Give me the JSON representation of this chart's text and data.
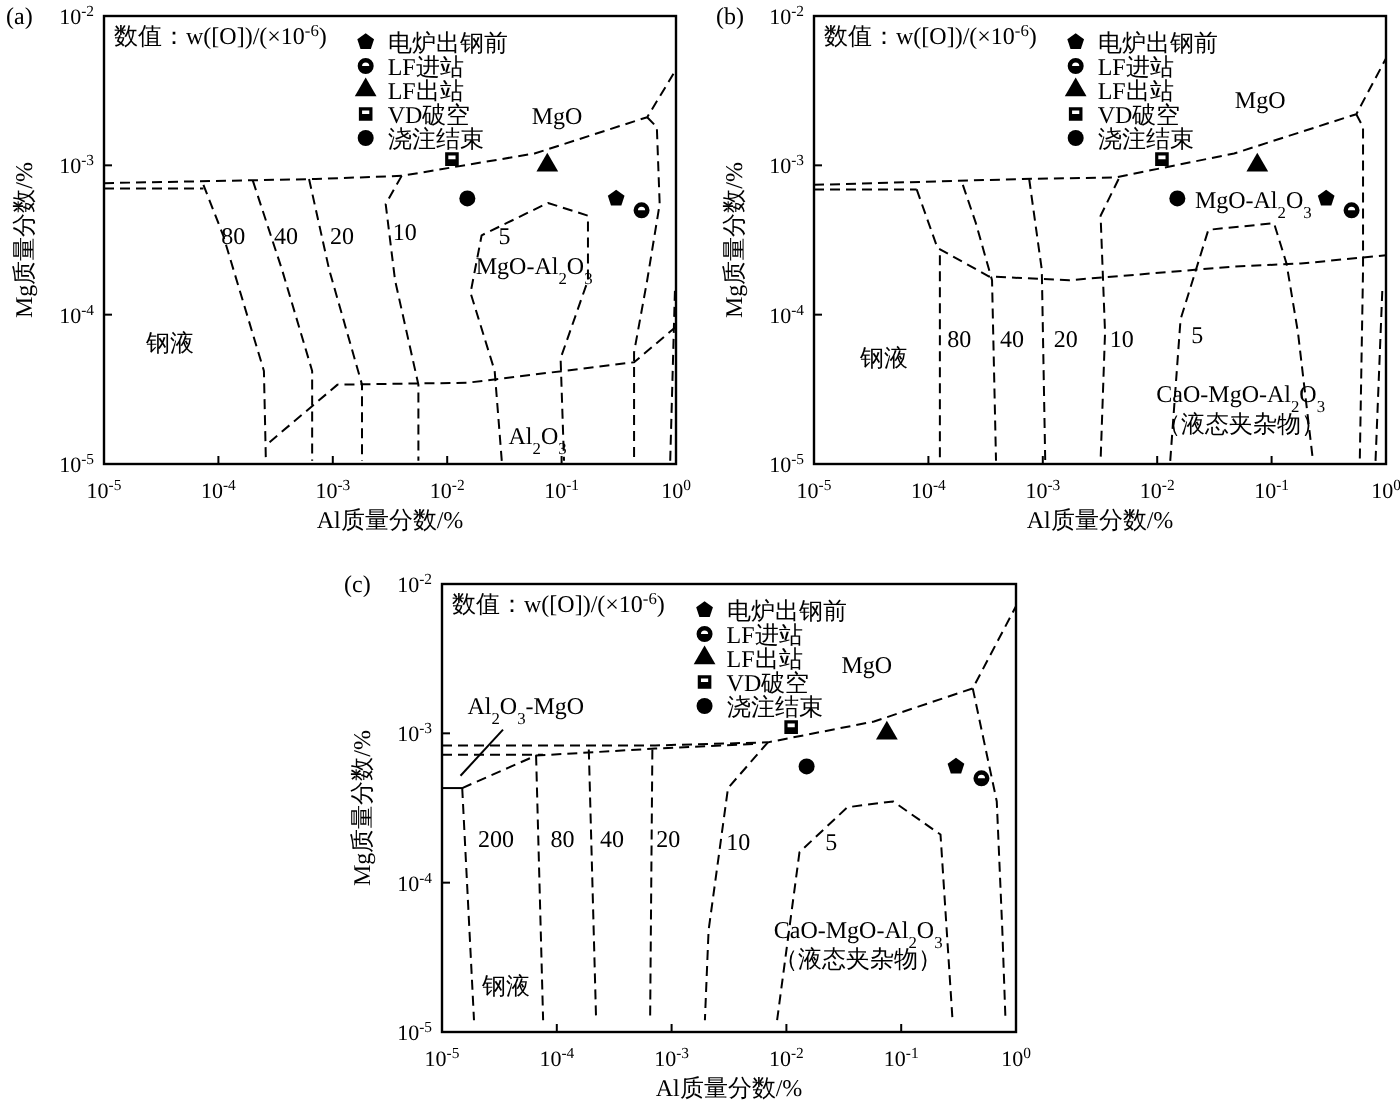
{
  "chart_data": [
    {
      "type": "scatter",
      "title": "(a)",
      "xlabel": "Al质量分数/%",
      "ylabel": "Mg质量分数/%",
      "log": "xy",
      "legend": "top",
      "xlim": [
        1e-05,
        1
      ],
      "ylim": [
        1e-05,
        0.01
      ],
      "xticks": [
        {
          "value": 1e-05,
          "label": "10$^{-5}$"
        },
        {
          "value": 0.0001,
          "label": "10$^{-4}$"
        },
        {
          "value": 0.001,
          "label": "10$^{-3}$"
        },
        {
          "value": 0.01,
          "label": "10$^{-2}$"
        },
        {
          "value": 0.1,
          "label": "10$^{-1}$"
        },
        {
          "value": 1,
          "label": "10$^{0}$"
        }
      ],
      "yticks": [
        {
          "value": 1e-05,
          "label": "10$^{-5}$"
        },
        {
          "value": 0.0001,
          "label": "10$^{-4}$"
        },
        {
          "value": 0.001,
          "label": "10$^{-3}$"
        },
        {
          "value": 0.01,
          "label": "10$^{-2}$"
        }
      ],
      "annotations": [
        "数值：w([O])/(×10$^{-6}$)",
        "80",
        "40",
        "20",
        "10",
        "5",
        "MgO-Al$_{2}$O$_{3}$",
        "MgO",
        "钢液",
        "Al$_{2}$O$_{3}$"
      ],
      "series": [
        {
          "type": "line",
          "line_style": "dashed",
          "color": "#000000",
          "x": [
            1e-05,
            0.00071,
            0.004,
            0.058,
            0.56,
            0.95
          ],
          "values": [
            0.00076,
            0.00081,
            0.00085,
            0.0012,
            0.0021,
            0.0041
          ]
        },
        {
          "type": "line",
          "line_style": "dashed",
          "color": "#000000",
          "x": [
            1e-05,
            7.4e-05
          ],
          "values": [
            0.0007,
            0.0007
          ]
        },
        {
          "type": "line",
          "line_style": "dashed",
          "color": "#000000",
          "x": [
            0.56,
            0.68,
            0.72,
            0.56,
            0.43,
            0.43
          ],
          "values": [
            0.0021,
            0.0018,
            0.00055,
            0.00017,
            5.6e-05,
            1.05e-05
          ]
        },
        {
          "type": "line",
          "line_style": "dashed",
          "color": "#000000",
          "x": [
            0.00028,
            0.0011,
            0.015,
            0.43,
            1
          ],
          "values": [
            1.4e-05,
            3.4e-05,
            3.5e-05,
            4.8e-05,
            8.3e-05
          ]
        },
        {
          "type": "line",
          "line_style": "dashed",
          "color": "#000000",
          "x": [
            7.4e-05,
            0.00011,
            0.00025,
            0.00026
          ],
          "values": [
            0.00074,
            0.00034,
            4.2e-05,
            1.05e-05
          ]
        },
        {
          "type": "line",
          "line_style": "dashed",
          "color": "#000000",
          "x": [
            0.0002,
            0.00036,
            0.00066,
            0.00066
          ],
          "values": [
            0.00079,
            0.0002,
            4.2e-05,
            1.05e-05
          ]
        },
        {
          "type": "line",
          "line_style": "dashed",
          "color": "#000000",
          "x": [
            0.00062,
            0.00093,
            0.0018,
            0.0018
          ],
          "values": [
            0.00081,
            0.0002,
            3.4e-05,
            1.05e-05
          ]
        },
        {
          "type": "line",
          "line_style": "dashed",
          "color": "#000000",
          "x": [
            0.004,
            0.0029,
            0.0035,
            0.0056,
            0.0056
          ],
          "values": [
            0.00085,
            0.00055,
            0.00017,
            3.4e-05,
            1.05e-05
          ]
        },
        {
          "type": "line",
          "line_style": "dashed",
          "color": "#000000",
          "x": [
            0.03,
            0.026,
            0.016,
            0.02,
            0.076,
            0.17,
            0.17,
            0.098,
            0.105
          ],
          "values": [
            1.05e-05,
            4.2e-05,
            0.00014,
            0.00034,
            0.00056,
            0.00046,
            0.00017,
            5.1e-05,
            1.05e-05
          ]
        },
        {
          "type": "line",
          "line_style": "dashed",
          "color": "#000000",
          "x": [
            0.89,
            0.98
          ],
          "values": [
            1.05e-05,
            0.00015
          ]
        },
        {
          "name": "电炉出钢前",
          "color": "#000000",
          "x": [
            0.3
          ],
          "values": [
            0.0006
          ]
        },
        {
          "name": "LF进站",
          "marker": "circle",
          "color": "#000000",
          "x": [
            0.5
          ],
          "values": [
            0.0005
          ]
        },
        {
          "name": "LF出站",
          "marker": "triangle",
          "color": "#000000",
          "x": [
            0.075
          ],
          "values": [
            0.001
          ]
        },
        {
          "name": "VD破空",
          "marker": "square",
          "color": "#000000",
          "x": [
            0.011
          ],
          "values": [
            0.0011
          ]
        },
        {
          "name": "浇注结束",
          "marker": "circle",
          "color": "#000000",
          "x": [
            0.015
          ],
          "values": [
            0.0006
          ]
        }
      ]
    },
    {
      "type": "scatter",
      "title": "(b)",
      "xlabel": "Al质量分数/%",
      "ylabel": "Mg质量分数/%",
      "log": "xy",
      "legend": "top",
      "xlim": [
        1e-05,
        1
      ],
      "ylim": [
        1e-05,
        0.01
      ],
      "xticks": [
        {
          "value": 1e-05,
          "label": "10$^{-5}$"
        },
        {
          "value": 0.0001,
          "label": "10$^{-4}$"
        },
        {
          "value": 0.001,
          "label": "10$^{-3}$"
        },
        {
          "value": 0.01,
          "label": "10$^{-2}$"
        },
        {
          "value": 0.1,
          "label": "10$^{-1}$"
        },
        {
          "value": 1,
          "label": "10$^{0}$"
        }
      ],
      "yticks": [
        {
          "value": 1e-05,
          "label": "10$^{-5}$"
        },
        {
          "value": 0.0001,
          "label": "10$^{-4}$"
        },
        {
          "value": 0.001,
          "label": "10$^{-3}$"
        },
        {
          "value": 0.01,
          "label": "10$^{-2}$"
        }
      ],
      "annotations": [
        "数值：w([O])/(×10$^{-6}$)",
        "80",
        "40",
        "20",
        "10",
        "5",
        "MgO",
        "MgO-Al$_{2}$O$_{3}$",
        "钢液",
        "CaO-MgO-Al$_{2}$O$_{3}$",
        "（液态夹杂物）"
      ],
      "series": [
        {
          "type": "line",
          "line_style": "dashed",
          "color": "#000000",
          "x": [
            1e-05,
            0.00066,
            0.0043,
            0.047,
            0.55,
            1
          ],
          "values": [
            0.00074,
            0.00081,
            0.00083,
            0.0012,
            0.0022,
            0.0052
          ]
        },
        {
          "type": "line",
          "line_style": "dashed",
          "color": "#000000",
          "x": [
            1e-05,
            7.9e-05
          ],
          "values": [
            0.00069,
            0.00069
          ]
        },
        {
          "type": "line",
          "line_style": "dashed",
          "color": "#000000",
          "x": [
            0.55,
            0.63,
            0.63,
            0.59
          ],
          "values": [
            0.0022,
            0.0018,
            0.0002,
            1.05e-05
          ]
        },
        {
          "type": "line",
          "line_style": "dashed",
          "color": "#000000",
          "x": [
            7.9e-05,
            0.00012,
            0.00034,
            0.0017,
            0.047,
            0.18,
            1
          ],
          "values": [
            0.00069,
            0.00028,
            0.00018,
            0.00017,
            0.00021,
            0.00022,
            0.00025
          ]
        },
        {
          "type": "line",
          "line_style": "dashed",
          "color": "#000000",
          "x": [
            0.000126,
            0.000126
          ],
          "values": [
            0.00025,
            1.05e-05
          ]
        },
        {
          "type": "line",
          "line_style": "dashed",
          "color": "#000000",
          "x": [
            0.0002,
            0.00026,
            0.00036,
            0.00039
          ],
          "values": [
            0.00074,
            0.00041,
            0.00017,
            1.05e-05
          ]
        },
        {
          "type": "line",
          "line_style": "dashed",
          "color": "#000000",
          "x": [
            0.00076,
            0.00098,
            0.00105
          ],
          "values": [
            0.00081,
            0.0002,
            1.05e-05
          ]
        },
        {
          "type": "line",
          "line_style": "dashed",
          "color": "#000000",
          "x": [
            0.0046,
            0.0032,
            0.0035,
            0.0032
          ],
          "values": [
            0.00081,
            0.00046,
            7.6e-05,
            1.05e-05
          ]
        },
        {
          "type": "line",
          "line_style": "dashed",
          "color": "#000000",
          "x": [
            0.013,
            0.016,
            0.028,
            0.105,
            0.135,
            0.17,
            0.23
          ],
          "values": [
            1.05e-05,
            9.3e-05,
            0.00037,
            0.00041,
            0.00022,
            7.6e-05,
            1.05e-05
          ]
        },
        {
          "type": "line",
          "line_style": "dashed",
          "color": "#000000",
          "x": [
            0.81,
            0.93
          ],
          "values": [
            1.05e-05,
            0.00015
          ]
        },
        {
          "name": "电炉出钢前",
          "color": "#000000",
          "x": [
            0.3
          ],
          "values": [
            0.0006
          ]
        },
        {
          "name": "LF进站",
          "marker": "circle",
          "color": "#000000",
          "x": [
            0.5
          ],
          "values": [
            0.0005
          ]
        },
        {
          "name": "LF出站",
          "marker": "triangle",
          "color": "#000000",
          "x": [
            0.075
          ],
          "values": [
            0.001
          ]
        },
        {
          "name": "VD破空",
          "marker": "square",
          "color": "#000000",
          "x": [
            0.011
          ],
          "values": [
            0.0011
          ]
        },
        {
          "name": "浇注结束",
          "marker": "circle",
          "color": "#000000",
          "x": [
            0.015
          ],
          "values": [
            0.0006
          ]
        }
      ]
    },
    {
      "type": "scatter",
      "title": "(c)",
      "xlabel": "Al质量分数/%",
      "ylabel": "Mg质量分数/%",
      "log": "xy",
      "legend": "top",
      "xlim": [
        1e-05,
        1
      ],
      "ylim": [
        1e-05,
        0.01
      ],
      "xticks": [
        {
          "value": 1e-05,
          "label": "10$^{-5}$"
        },
        {
          "value": 0.0001,
          "label": "10$^{-4}$"
        },
        {
          "value": 0.001,
          "label": "10$^{-3}$"
        },
        {
          "value": 0.01,
          "label": "10$^{-2}$"
        },
        {
          "value": 0.1,
          "label": "10$^{-1}$"
        },
        {
          "value": 1,
          "label": "10$^{0}$"
        }
      ],
      "yticks": [
        {
          "value": 1e-05,
          "label": "10$^{-5}$"
        },
        {
          "value": 0.0001,
          "label": "10$^{-4}$"
        },
        {
          "value": 0.001,
          "label": "10$^{-3}$"
        },
        {
          "value": 0.01,
          "label": "10$^{-2}$"
        }
      ],
      "annotations": [
        "数值：w([O])/(×10$^{-6}$)",
        "200",
        "80",
        "40",
        "20",
        "10",
        "5",
        "MgO",
        "CaO-MgO-Al$_{2}$O$_{3}$",
        "（液态夹杂物）",
        "钢液",
        "Al$_{2}$O$_{3}$-MgO"
      ],
      "series": [
        {
          "type": "line",
          "line_style": "dashed",
          "color": "#000000",
          "x": [
            1e-05,
            0.00072,
            0.0069,
            0.058,
            0.42,
            1
          ],
          "values": [
            0.00083,
            0.00083,
            0.00087,
            0.0012,
            0.002,
            0.0071
          ]
        },
        {
          "type": "line",
          "line_style": "dashed",
          "color": "#000000",
          "x": [
            1e-05,
            7.6e-05
          ],
          "values": [
            0.00072,
            0.00072
          ]
        },
        {
          "type": "line",
          "line_style": "dashed",
          "color": "#000000",
          "x": [
            1.5e-05,
            6.6e-05,
            0.00072,
            0.0052
          ],
          "values": [
            0.00043,
            0.00071,
            0.00079,
            0.00085
          ]
        },
        {
          "type": "line",
          "line_style": "solid",
          "color": "#000000",
          "x": [
            1e-05,
            1.5e-05
          ],
          "values": [
            0.00043,
            0.00043
          ]
        },
        {
          "type": "line",
          "line_style": "solid",
          "color": "#000000",
          "x": [
            1.45e-05,
            3.4e-05
          ],
          "values": [
            0.00052,
            0.00106
          ]
        },
        {
          "type": "line",
          "line_style": "dashed",
          "color": "#000000",
          "x": [
            1.5e-05,
            1.9e-05
          ],
          "values": [
            0.00043,
            1.2e-05
          ]
        },
        {
          "type": "line",
          "line_style": "dashed",
          "color": "#000000",
          "x": [
            6.6e-05,
            7.6e-05
          ],
          "values": [
            0.00071,
            1.2e-05
          ]
        },
        {
          "type": "line",
          "line_style": "dashed",
          "color": "#000000",
          "x": [
            0.00019,
            0.00022
          ],
          "values": [
            0.00078,
            1.2e-05
          ]
        },
        {
          "type": "line",
          "line_style": "dashed",
          "color": "#000000",
          "x": [
            0.00068,
            0.00065
          ],
          "values": [
            0.00078,
            1.2e-05
          ]
        },
        {
          "type": "line",
          "line_style": "dashed",
          "color": "#000000",
          "x": [
            0.0069,
            0.0031,
            0.0021,
            0.00195
          ],
          "values": [
            0.00087,
            0.00043,
            4.8e-05,
            1.2e-05
          ]
        },
        {
          "type": "line",
          "line_style": "dashed",
          "color": "#000000",
          "x": [
            0.0083,
            0.013,
            0.034,
            0.085,
            0.22,
            0.28
          ],
          "values": [
            1.2e-05,
            0.00016,
            0.00032,
            0.00035,
            0.00021,
            1.2e-05
          ]
        },
        {
          "type": "line",
          "line_style": "dashed",
          "color": "#000000",
          "x": [
            0.42,
            0.68,
            0.76,
            0.81
          ],
          "values": [
            0.002,
            0.00035,
            4.8e-05,
            1.2e-05
          ]
        },
        {
          "name": "电炉出钢前",
          "color": "#000000",
          "x": [
            0.3
          ],
          "values": [
            0.0006
          ]
        },
        {
          "name": "LF进站",
          "marker": "circle",
          "color": "#000000",
          "x": [
            0.5
          ],
          "values": [
            0.0005
          ]
        },
        {
          "name": "LF出站",
          "marker": "triangle",
          "color": "#000000",
          "x": [
            0.075
          ],
          "values": [
            0.001
          ]
        },
        {
          "name": "VD破空",
          "marker": "square",
          "color": "#000000",
          "x": [
            0.011
          ],
          "values": [
            0.0011
          ]
        },
        {
          "name": "浇注结束",
          "marker": "circle",
          "color": "#000000",
          "x": [
            0.015
          ],
          "values": [
            0.0006
          ]
        }
      ]
    }
  ]
}
